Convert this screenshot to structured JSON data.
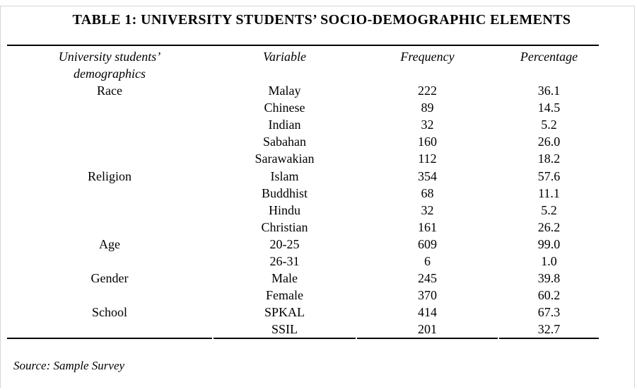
{
  "title": "TABLE 1: UNIVERSITY STUDENTS’ SOCIO-DEMOGRAPHIC ELEMENTS",
  "headers": {
    "col1_line1": "University students’",
    "col1_line2": "demographics",
    "col2": "Variable",
    "col3": "Frequency",
    "col4": "Percentage"
  },
  "rows": [
    {
      "group": "Race",
      "variable": "Malay",
      "frequency": "222",
      "percentage": "36.1"
    },
    {
      "group": "",
      "variable": "Chinese",
      "frequency": "89",
      "percentage": "14.5"
    },
    {
      "group": "",
      "variable": "Indian",
      "frequency": "32",
      "percentage": "5.2"
    },
    {
      "group": "",
      "variable": "Sabahan",
      "frequency": "160",
      "percentage": "26.0"
    },
    {
      "group": "",
      "variable": "Sarawakian",
      "frequency": "112",
      "percentage": "18.2"
    },
    {
      "group": "Religion",
      "variable": "Islam",
      "frequency": "354",
      "percentage": "57.6"
    },
    {
      "group": "",
      "variable": "Buddhist",
      "frequency": "68",
      "percentage": "11.1"
    },
    {
      "group": "",
      "variable": "Hindu",
      "frequency": "32",
      "percentage": "5.2"
    },
    {
      "group": "",
      "variable": "Christian",
      "frequency": "161",
      "percentage": "26.2"
    },
    {
      "group": "Age",
      "variable": "20-25",
      "frequency": "609",
      "percentage": "99.0"
    },
    {
      "group": "",
      "variable": "26-31",
      "frequency": "6",
      "percentage": "1.0"
    },
    {
      "group": "Gender",
      "variable": "Male",
      "frequency": "245",
      "percentage": "39.8"
    },
    {
      "group": "",
      "variable": "Female",
      "frequency": "370",
      "percentage": "60.2"
    },
    {
      "group": "School",
      "variable": "SPKAL",
      "frequency": "414",
      "percentage": "67.3"
    },
    {
      "group": "",
      "variable": "SSIL",
      "frequency": "201",
      "percentage": "32.7"
    }
  ],
  "source": "Source: Sample Survey"
}
